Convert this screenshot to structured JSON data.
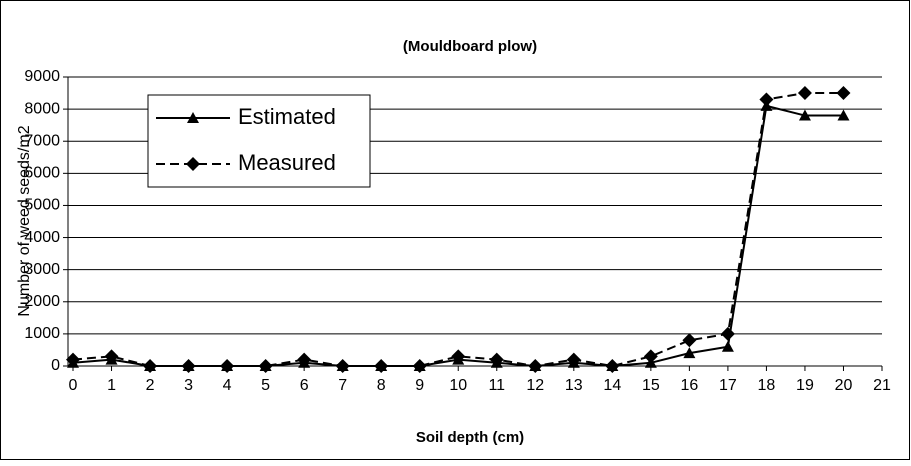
{
  "chart_data": {
    "type": "line",
    "title": "(Mouldboard plow)",
    "xlabel": "Soil depth (cm)",
    "ylabel": "Number of weed seeds/m2",
    "x": [
      0,
      1,
      2,
      3,
      4,
      5,
      6,
      7,
      8,
      9,
      10,
      11,
      12,
      13,
      14,
      15,
      16,
      17,
      18,
      19,
      20
    ],
    "series": [
      {
        "name": "Estimated",
        "color": "#000000",
        "marker": "triangle",
        "dash": false,
        "values": [
          100,
          200,
          0,
          0,
          0,
          0,
          100,
          0,
          0,
          0,
          200,
          100,
          0,
          100,
          0,
          100,
          400,
          600,
          8100,
          7800,
          7800
        ]
      },
      {
        "name": "Measured",
        "color": "#000000",
        "marker": "diamond",
        "dash": true,
        "values": [
          200,
          300,
          0,
          0,
          0,
          0,
          200,
          0,
          0,
          0,
          300,
          200,
          0,
          200,
          0,
          300,
          800,
          1000,
          8300,
          8500,
          8500
        ]
      }
    ],
    "xlim": [
      0,
      21
    ],
    "xticks": [
      0,
      1,
      2,
      3,
      4,
      5,
      6,
      7,
      8,
      9,
      10,
      11,
      12,
      13,
      14,
      15,
      16,
      17,
      18,
      19,
      20,
      21
    ],
    "ylim": [
      0,
      9000
    ],
    "yticks": [
      0,
      1000,
      2000,
      3000,
      4000,
      5000,
      6000,
      7000,
      8000,
      9000
    ],
    "grid": true,
    "legend": "upper-left"
  }
}
